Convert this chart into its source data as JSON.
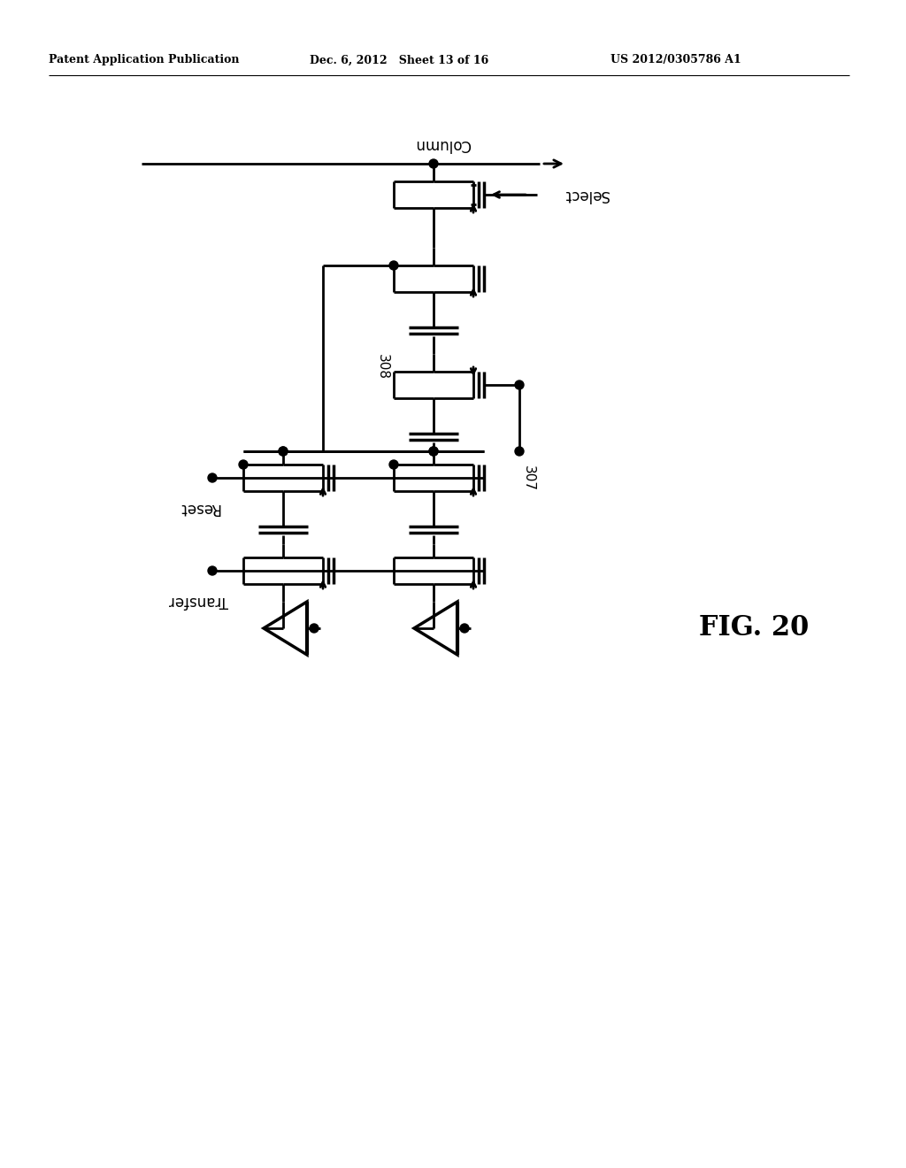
{
  "title": "FIG. 20",
  "header_left": "Patent Application Publication",
  "header_center": "Dec. 6, 2012   Sheet 13 of 16",
  "header_right": "US 2012/0305786 A1",
  "label_column": "Column",
  "label_select": "Select",
  "label_reset": "Reset",
  "label_transfer": "Transfer",
  "label_308": "308",
  "label_307": "307",
  "bg_color": "#ffffff",
  "line_color": "#000000",
  "line_width": 2.0,
  "fig_width": 10.24,
  "fig_height": 13.2
}
